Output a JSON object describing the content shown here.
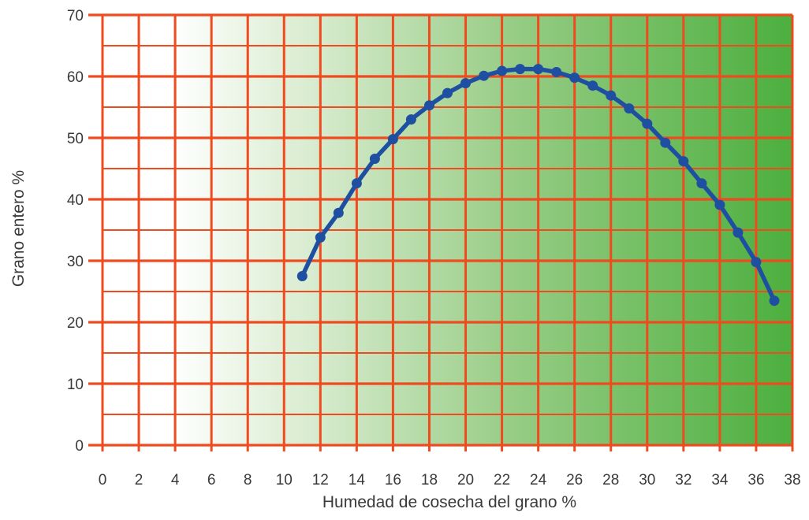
{
  "chart_data": {
    "type": "line",
    "title": "",
    "xlabel": "Humedad de cosecha del grano %",
    "ylabel": "Grano entero %",
    "xlim": [
      0,
      38
    ],
    "ylim": [
      0,
      70
    ],
    "x_ticks": [
      "0",
      "2",
      "4",
      "6",
      "8",
      "10",
      "12",
      "14",
      "16",
      "18",
      "20",
      "22",
      "24",
      "26",
      "28",
      "30",
      "32",
      "34",
      "36",
      "38"
    ],
    "y_ticks": [
      "0",
      "10",
      "20",
      "30",
      "40",
      "50",
      "60",
      "70"
    ],
    "grid": true,
    "grid_step_x": 2,
    "grid_step_y": 10,
    "legend": "none",
    "colors": {
      "grid": "#f04a1e",
      "line": "#1f4fa0",
      "background_start": "#ffffff",
      "background_end": "#4caf3e"
    },
    "series": [
      {
        "x": [
          11,
          12,
          13,
          14,
          15,
          16,
          17,
          18,
          19,
          20,
          21,
          22,
          23,
          24,
          25,
          26,
          27,
          28,
          29,
          30,
          31,
          32,
          33,
          34,
          35,
          36,
          37
        ],
        "values": [
          27.5,
          33.8,
          37.8,
          42.6,
          46.6,
          49.8,
          53.0,
          55.3,
          57.3,
          58.9,
          60.1,
          60.9,
          61.2,
          61.2,
          60.7,
          59.8,
          58.5,
          56.9,
          54.8,
          52.3,
          49.2,
          46.2,
          42.6,
          39.1,
          34.6,
          29.8,
          23.5
        ]
      }
    ]
  }
}
